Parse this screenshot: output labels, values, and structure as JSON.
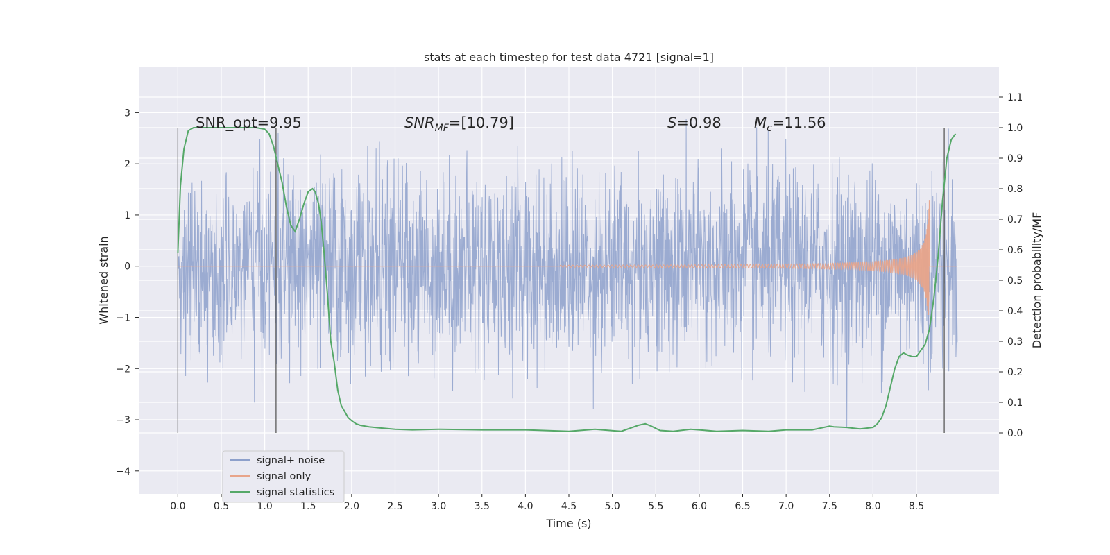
{
  "chart_data": {
    "type": "line",
    "title": "stats at each timestep for test data 4721 [signal=1]",
    "xlabel": "Time (s)",
    "ylabel_left": "Whitened strain",
    "ylabel_right": "Detection probability/MF",
    "xlim": [
      -0.45,
      9.45
    ],
    "ylim_left": [
      -4.45,
      3.9
    ],
    "ylim_right": [
      -0.2,
      1.2
    ],
    "xticks": [
      "0.0",
      "0.5",
      "1.0",
      "1.5",
      "2.0",
      "2.5",
      "3.0",
      "3.5",
      "4.0",
      "4.5",
      "5.0",
      "5.5",
      "6.0",
      "6.5",
      "7.0",
      "7.5",
      "8.0",
      "8.5"
    ],
    "yticks_left": [
      "−4",
      "−3",
      "−2",
      "−1",
      "0",
      "1",
      "2",
      "3"
    ],
    "yticks_right": [
      "0.0",
      "0.1",
      "0.2",
      "0.3",
      "0.4",
      "0.5",
      "0.6",
      "0.7",
      "0.8",
      "0.9",
      "1.0",
      "1.1"
    ],
    "grid": true,
    "legend_position": "lower-left",
    "annotations": {
      "snr_opt": "SNR_opt=9.95",
      "snr_mf_label": "SNR",
      "snr_mf_sub": "MF",
      "snr_mf_value": "=[10.79]",
      "s_label": "S",
      "s_value": "=0.98",
      "mc_label": "M",
      "mc_sub": "c",
      "mc_value": "=11.56"
    },
    "vertical_markers_x": [
      0.0,
      1.13,
      8.82
    ],
    "series": [
      {
        "name": "signal+ noise",
        "axis": "left",
        "color": "#8da0cb",
        "t_range": [
          0.0,
          8.97
        ],
        "typical_amplitude": 0.95,
        "max": 3.55,
        "min": -3.95
      },
      {
        "name": "signal only",
        "axis": "left",
        "color": "#e8a48a",
        "t_range": [
          0.0,
          8.97
        ],
        "chirp_start": 4.4,
        "merger_time": 8.65,
        "peak_amplitude": 1.52
      },
      {
        "name": "signal statistics",
        "axis": "right",
        "color": "#55a868",
        "x": [
          0.0,
          0.03,
          0.07,
          0.12,
          0.18,
          0.25,
          0.35,
          0.5,
          0.7,
          0.9,
          1.0,
          1.05,
          1.1,
          1.15,
          1.2,
          1.25,
          1.3,
          1.35,
          1.4,
          1.45,
          1.5,
          1.55,
          1.58,
          1.62,
          1.65,
          1.68,
          1.72,
          1.76,
          1.8,
          1.84,
          1.88,
          1.92,
          1.96,
          2.0,
          2.05,
          2.1,
          2.2,
          2.3,
          2.5,
          2.7,
          3.0,
          3.5,
          4.0,
          4.5,
          4.8,
          5.1,
          5.3,
          5.38,
          5.45,
          5.55,
          5.7,
          5.9,
          6.0,
          6.2,
          6.5,
          6.8,
          7.0,
          7.3,
          7.5,
          7.55,
          7.7,
          7.85,
          8.0,
          8.05,
          8.1,
          8.15,
          8.2,
          8.25,
          8.3,
          8.35,
          8.4,
          8.45,
          8.5,
          8.55,
          8.6,
          8.65,
          8.7,
          8.75,
          8.8,
          8.85,
          8.9,
          8.95
        ],
        "values": [
          0.59,
          0.81,
          0.93,
          0.99,
          1.0,
          1.0,
          1.0,
          1.0,
          1.0,
          1.0,
          0.995,
          0.98,
          0.94,
          0.88,
          0.82,
          0.74,
          0.68,
          0.66,
          0.7,
          0.75,
          0.79,
          0.8,
          0.79,
          0.75,
          0.69,
          0.6,
          0.46,
          0.3,
          0.23,
          0.14,
          0.09,
          0.07,
          0.05,
          0.04,
          0.03,
          0.025,
          0.02,
          0.017,
          0.012,
          0.01,
          0.012,
          0.01,
          0.01,
          0.005,
          0.012,
          0.005,
          0.025,
          0.03,
          0.022,
          0.008,
          0.005,
          0.012,
          0.01,
          0.005,
          0.008,
          0.005,
          0.01,
          0.01,
          0.022,
          0.02,
          0.018,
          0.013,
          0.018,
          0.03,
          0.05,
          0.09,
          0.15,
          0.21,
          0.25,
          0.262,
          0.255,
          0.25,
          0.25,
          0.27,
          0.29,
          0.34,
          0.44,
          0.58,
          0.76,
          0.9,
          0.96,
          0.98
        ]
      }
    ]
  }
}
